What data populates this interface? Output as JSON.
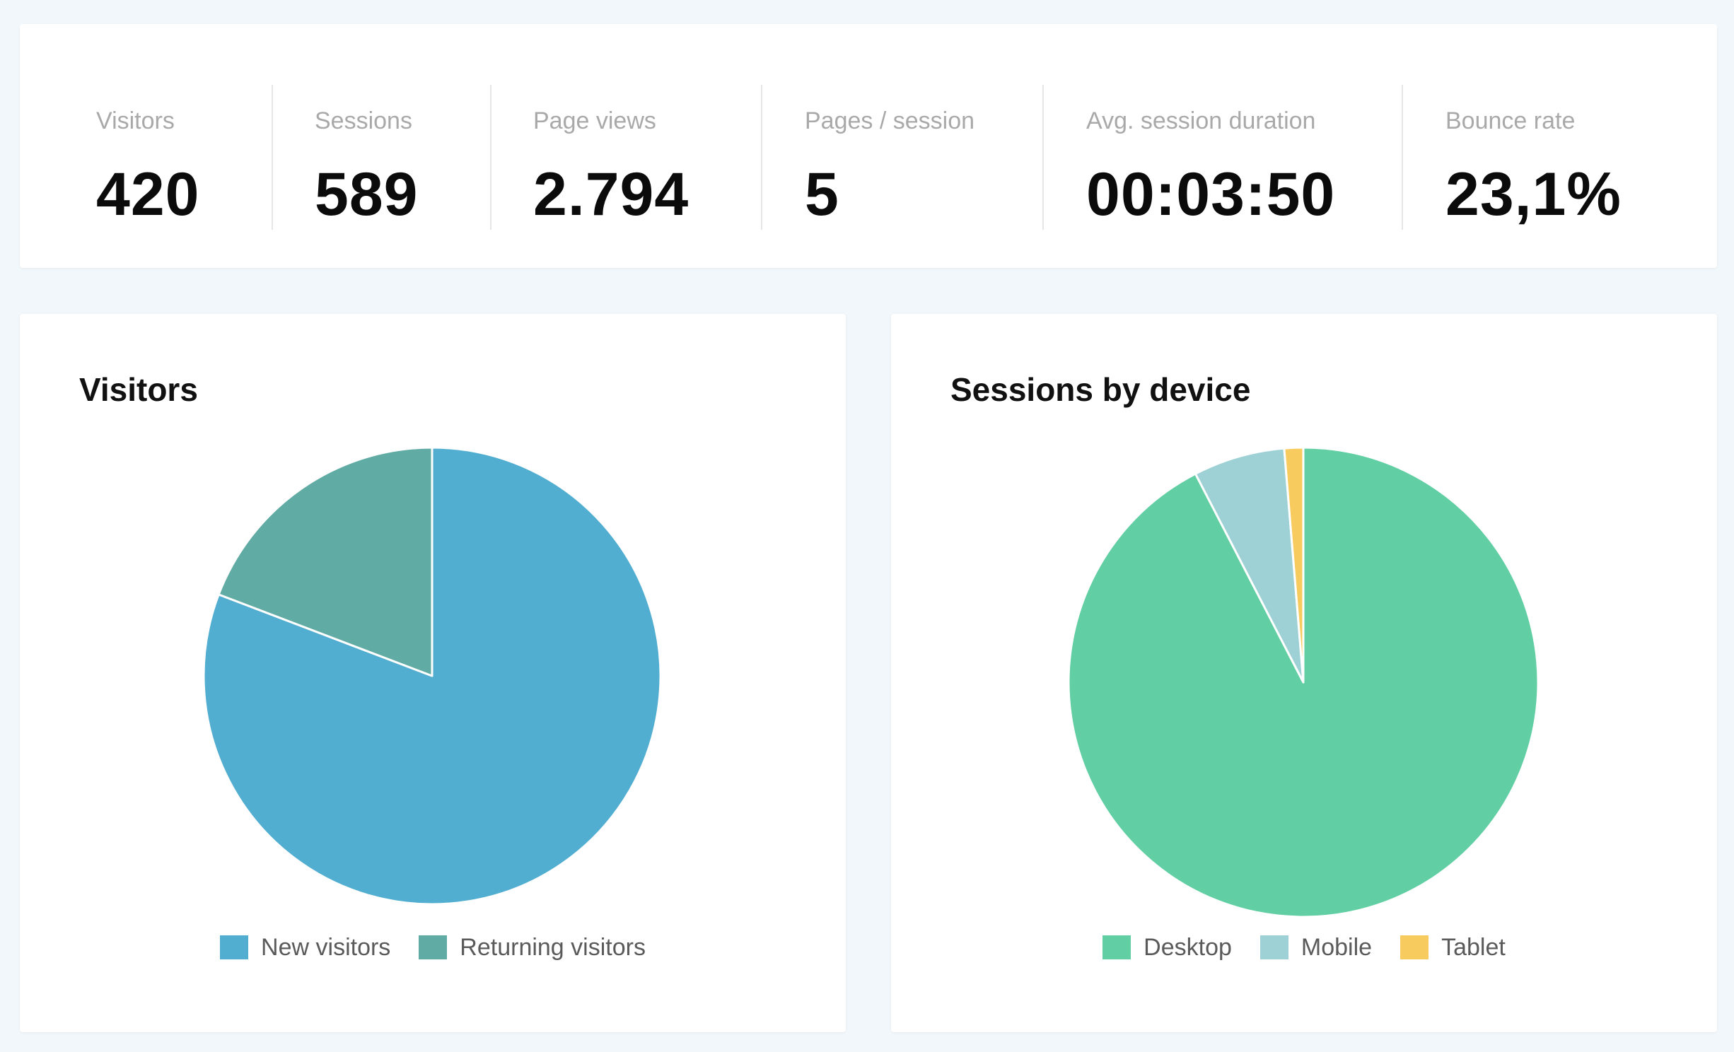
{
  "stats": [
    {
      "label": "Visitors",
      "value": "420"
    },
    {
      "label": "Sessions",
      "value": "589"
    },
    {
      "label": "Page views",
      "value": "2.794"
    },
    {
      "label": "Pages / session",
      "value": "5"
    },
    {
      "label": "Avg. session duration",
      "value": "00:03:50"
    },
    {
      "label": "Bounce rate",
      "value": "23,1%"
    }
  ],
  "charts": {
    "visitors": {
      "title": "Visitors"
    },
    "devices": {
      "title": "Sessions by device"
    }
  },
  "chart_data": [
    {
      "type": "pie",
      "title": "Visitors",
      "categories": [
        "New visitors",
        "Returning visitors"
      ],
      "values": [
        80.8,
        19.2
      ],
      "colors": [
        "#52aed0",
        "#60aba3"
      ],
      "legend": "bottom"
    },
    {
      "type": "pie",
      "title": "Sessions by device",
      "categories": [
        "Desktop",
        "Mobile",
        "Tablet"
      ],
      "values": [
        92.4,
        6.3,
        1.3
      ],
      "colors": [
        "#61cfa3",
        "#9ed1d6",
        "#f7cb5e"
      ],
      "legend": "bottom"
    }
  ]
}
